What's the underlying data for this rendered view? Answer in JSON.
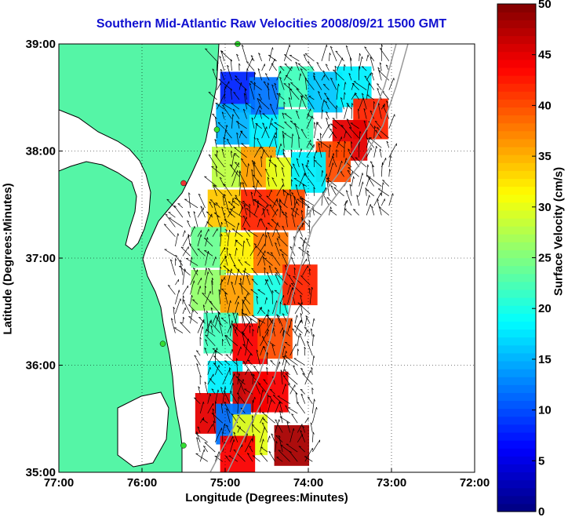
{
  "chart_data": {
    "type": "heatmap",
    "title": "Southern Mid-Atlantic Raw Velocities 2008/09/21 1500 GMT",
    "xlabel": "Longitude (Degrees:Minutes)",
    "ylabel": "Latitude (Degrees:Minutes)",
    "colorbar_label": "Surface Velocity (cm/s)",
    "xlim": [
      -77,
      -72
    ],
    "ylim": [
      35,
      39
    ],
    "xticks": [
      -77,
      -76,
      -75,
      -74,
      -73,
      -72
    ],
    "xtick_labels": [
      "77:00",
      "76:00",
      "75:00",
      "74:00",
      "73:00",
      "72:00"
    ],
    "yticks": [
      35,
      36,
      37,
      38,
      39
    ],
    "ytick_labels": [
      "35:00",
      "36:00",
      "37:00",
      "38:00",
      "39:00"
    ],
    "colorbar_range": [
      0,
      50
    ],
    "colorbar_ticks": [
      0,
      5,
      10,
      15,
      20,
      25,
      30,
      35,
      40,
      45,
      50
    ],
    "colormap": "jet",
    "grid": true,
    "land_color": "#55f5a6",
    "cells": [
      {
        "lon": -74.85,
        "lat": 38.55,
        "speed": 8
      },
      {
        "lon": -74.5,
        "lat": 38.5,
        "speed": 12
      },
      {
        "lon": -74.15,
        "lat": 38.6,
        "speed": 22
      },
      {
        "lon": -73.8,
        "lat": 38.55,
        "speed": 16
      },
      {
        "lon": -73.45,
        "lat": 38.6,
        "speed": 18
      },
      {
        "lon": -73.25,
        "lat": 38.3,
        "speed": 42
      },
      {
        "lon": -73.5,
        "lat": 38.1,
        "speed": 45
      },
      {
        "lon": -73.7,
        "lat": 37.9,
        "speed": 40
      },
      {
        "lon": -74.9,
        "lat": 38.25,
        "speed": 15
      },
      {
        "lon": -74.5,
        "lat": 38.15,
        "speed": 18
      },
      {
        "lon": -74.15,
        "lat": 38.2,
        "speed": 22
      },
      {
        "lon": -74.95,
        "lat": 37.85,
        "speed": 28
      },
      {
        "lon": -74.6,
        "lat": 37.85,
        "speed": 36
      },
      {
        "lon": -74.3,
        "lat": 37.75,
        "speed": 30
      },
      {
        "lon": -74.0,
        "lat": 37.8,
        "speed": 18
      },
      {
        "lon": -75.0,
        "lat": 37.45,
        "speed": 34
      },
      {
        "lon": -74.6,
        "lat": 37.45,
        "speed": 42
      },
      {
        "lon": -74.25,
        "lat": 37.45,
        "speed": 40
      },
      {
        "lon": -75.2,
        "lat": 37.1,
        "speed": 24
      },
      {
        "lon": -74.85,
        "lat": 37.05,
        "speed": 32
      },
      {
        "lon": -74.45,
        "lat": 37.05,
        "speed": 38
      },
      {
        "lon": -75.2,
        "lat": 36.7,
        "speed": 26
      },
      {
        "lon": -74.85,
        "lat": 36.65,
        "speed": 36
      },
      {
        "lon": -74.45,
        "lat": 36.65,
        "speed": 20
      },
      {
        "lon": -74.1,
        "lat": 36.75,
        "speed": 42
      },
      {
        "lon": -75.05,
        "lat": 36.3,
        "speed": 22
      },
      {
        "lon": -74.7,
        "lat": 36.2,
        "speed": 44
      },
      {
        "lon": -74.4,
        "lat": 36.25,
        "speed": 40
      },
      {
        "lon": -75.0,
        "lat": 35.85,
        "speed": 18
      },
      {
        "lon": -74.7,
        "lat": 35.75,
        "speed": 46
      },
      {
        "lon": -74.45,
        "lat": 35.75,
        "speed": 44
      },
      {
        "lon": -75.15,
        "lat": 35.55,
        "speed": 45
      },
      {
        "lon": -74.9,
        "lat": 35.45,
        "speed": 12
      },
      {
        "lon": -74.7,
        "lat": 35.35,
        "speed": 30
      },
      {
        "lon": -74.85,
        "lat": 35.15,
        "speed": 44
      },
      {
        "lon": -74.2,
        "lat": 35.25,
        "speed": 48
      }
    ],
    "vector_regions": [
      {
        "lon_range": [
          -75.1,
          -72.95
        ],
        "lat_range": [
          37.4,
          38.9
        ]
      },
      {
        "lon_range": [
          -75.6,
          -73.9
        ],
        "lat_range": [
          36.3,
          37.5
        ]
      },
      {
        "lon_range": [
          -75.3,
          -73.9
        ],
        "lat_range": [
          35.1,
          36.4
        ]
      }
    ],
    "stations": [
      {
        "lon": -74.85,
        "lat": 39.0,
        "status": "ok"
      },
      {
        "lon": -75.1,
        "lat": 38.2,
        "status": "ok"
      },
      {
        "lon": -75.5,
        "lat": 37.7,
        "status": "down"
      },
      {
        "lon": -75.75,
        "lat": 36.2,
        "status": "ok"
      },
      {
        "lon": -75.5,
        "lat": 35.25,
        "status": "ok"
      }
    ],
    "station_colors": {
      "ok": "#33dd33",
      "down": "#ee3333"
    }
  }
}
